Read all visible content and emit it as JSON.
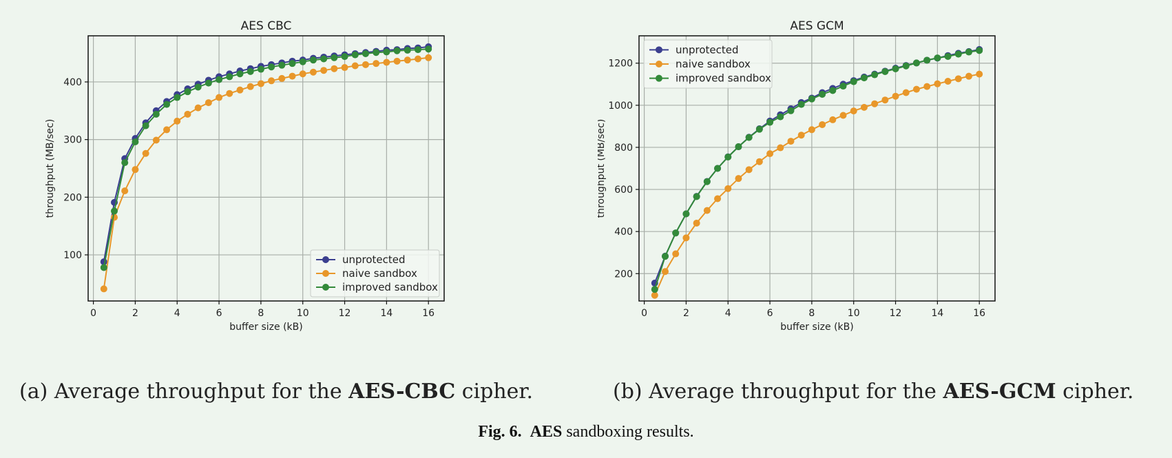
{
  "figure": {
    "caption_label": "Fig. 6.",
    "caption_bold": "AES",
    "caption_rest": "sandboxing results.",
    "sub_a": {
      "prefix": "(a) Average throughput for the",
      "bold": "AES-CBC",
      "suffix": "cipher."
    },
    "sub_b": {
      "prefix": "(b) Average throughput for the",
      "bold": "AES-GCM",
      "suffix": "cipher."
    }
  },
  "colors": {
    "unprotected": "#3b3f8f",
    "naive_sandbox": "#e8972a",
    "improved_sandbox": "#338a3a",
    "grid": "#a8aea8",
    "frame": "#111111",
    "background": "#eef5ee"
  },
  "chart_data": [
    {
      "type": "line",
      "title": "AES CBC",
      "xlabel": "buffer size (kB)",
      "ylabel": "throughput (MB/sec)",
      "xlim": [
        -0.25,
        16.75
      ],
      "ylim": [
        20,
        480
      ],
      "xticks": [
        0,
        2,
        4,
        6,
        8,
        10,
        12,
        14,
        16
      ],
      "yticks": [
        100,
        200,
        300,
        400
      ],
      "grid": true,
      "legend_position": "lower-right",
      "x": [
        0.5,
        1,
        1.5,
        2,
        2.5,
        3,
        3.5,
        4,
        4.5,
        5,
        5.5,
        6,
        6.5,
        7,
        7.5,
        8,
        8.5,
        9,
        9.5,
        10,
        10.5,
        11,
        11.5,
        12,
        12.5,
        13,
        13.5,
        14,
        14.5,
        15,
        15.5,
        16
      ],
      "series": [
        {
          "name": "unprotected",
          "color_key": "unprotected",
          "values": [
            88,
            191,
            267,
            302,
            329,
            350,
            366,
            378,
            388,
            396,
            403,
            409,
            414,
            419,
            423,
            427,
            430,
            433,
            436,
            438,
            441,
            443,
            445,
            447,
            449,
            451,
            453,
            455,
            456,
            458,
            459,
            461
          ]
        },
        {
          "name": "naive sandbox",
          "color_key": "naive_sandbox",
          "values": [
            41,
            165,
            211,
            248,
            276,
            299,
            317,
            332,
            344,
            355,
            364,
            373,
            380,
            386,
            392,
            397,
            402,
            406,
            410,
            414,
            417,
            420,
            423,
            425,
            428,
            430,
            432,
            434,
            436,
            438,
            440,
            442
          ]
        },
        {
          "name": "improved sandbox",
          "color_key": "improved_sandbox",
          "values": [
            78,
            176,
            260,
            296,
            324,
            344,
            361,
            373,
            383,
            391,
            398,
            404,
            409,
            414,
            418,
            422,
            426,
            429,
            432,
            435,
            438,
            440,
            442,
            444,
            447,
            449,
            451,
            452,
            454,
            455,
            456,
            457
          ]
        }
      ]
    },
    {
      "type": "line",
      "title": "AES GCM",
      "xlabel": "buffer size (kB)",
      "ylabel": "throughput (MB/sec)",
      "xlim": [
        -0.25,
        16.75
      ],
      "ylim": [
        70,
        1330
      ],
      "xticks": [
        0,
        2,
        4,
        6,
        8,
        10,
        12,
        14,
        16
      ],
      "yticks": [
        200,
        400,
        600,
        800,
        1000,
        1200
      ],
      "grid": true,
      "legend_position": "upper-left",
      "x": [
        0.5,
        1,
        1.5,
        2,
        2.5,
        3,
        3.5,
        4,
        4.5,
        5,
        5.5,
        6,
        6.5,
        7,
        7.5,
        8,
        8.5,
        9,
        9.5,
        10,
        10.5,
        11,
        11.5,
        12,
        12.5,
        13,
        13.5,
        14,
        14.5,
        15,
        15.5,
        16
      ],
      "series": [
        {
          "name": "unprotected",
          "color_key": "unprotected",
          "values": [
            155,
            283,
            393,
            484,
            567,
            638,
            700,
            755,
            803,
            848,
            888,
            925,
            955,
            983,
            1013,
            1034,
            1060,
            1080,
            1100,
            1117,
            1134,
            1148,
            1162,
            1176,
            1189,
            1201,
            1214,
            1224,
            1236,
            1247,
            1255,
            1265
          ]
        },
        {
          "name": "naive sandbox",
          "color_key": "naive_sandbox",
          "values": [
            97,
            210,
            294,
            370,
            440,
            500,
            556,
            604,
            652,
            694,
            732,
            770,
            798,
            829,
            858,
            884,
            908,
            931,
            952,
            973,
            990,
            1007,
            1025,
            1043,
            1060,
            1076,
            1089,
            1102,
            1114,
            1126,
            1138,
            1148
          ]
        },
        {
          "name": "improved sandbox",
          "color_key": "improved_sandbox",
          "values": [
            125,
            282,
            393,
            484,
            566,
            637,
            700,
            754,
            803,
            847,
            886,
            919,
            945,
            974,
            1004,
            1030,
            1052,
            1070,
            1091,
            1112,
            1130,
            1145,
            1160,
            1173,
            1187,
            1201,
            1214,
            1225,
            1232,
            1243,
            1253,
            1260
          ]
        }
      ]
    }
  ]
}
